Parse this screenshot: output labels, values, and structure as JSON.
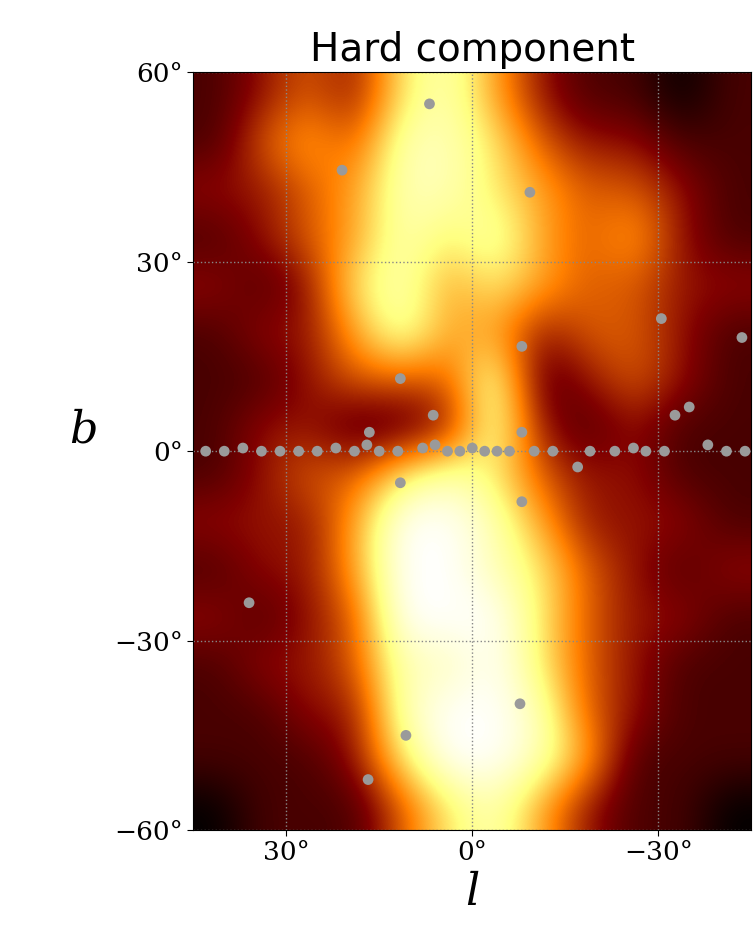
{
  "chart_data": {
    "type": "heatmap",
    "title": "Hard component",
    "x_label": "l",
    "y_label": "b",
    "xlim": [
      45,
      -45
    ],
    "ylim": [
      -60,
      60
    ],
    "xticks": [
      {
        "value": 30,
        "label": "30°"
      },
      {
        "value": 0,
        "label": "0°"
      },
      {
        "value": -30,
        "label": "−30°"
      }
    ],
    "yticks": [
      {
        "value": -60,
        "label": "−60°"
      },
      {
        "value": -30,
        "label": "−30°"
      },
      {
        "value": 0,
        "label": "0°"
      },
      {
        "value": 30,
        "label": "30°"
      },
      {
        "value": 60,
        "label": "60°"
      }
    ],
    "grid": true,
    "cells": [
      [
        0.3,
        0.4,
        0.5,
        0.4,
        0.7,
        0.8,
        0.6,
        0.4,
        0.3,
        0.3,
        0.2,
        0.3
      ],
      [
        0.3,
        0.5,
        0.6,
        0.5,
        0.8,
        0.8,
        0.7,
        0.5,
        0.4,
        0.4,
        0.3,
        0.3
      ],
      [
        0.4,
        0.4,
        0.5,
        0.6,
        0.8,
        0.8,
        0.7,
        0.6,
        0.5,
        0.5,
        0.4,
        0.3
      ],
      [
        0.3,
        0.4,
        0.5,
        0.6,
        0.8,
        0.7,
        0.8,
        0.6,
        0.5,
        0.6,
        0.4,
        0.3
      ],
      [
        0.4,
        0.3,
        0.4,
        0.7,
        0.8,
        0.6,
        0.7,
        0.6,
        0.5,
        0.5,
        0.4,
        0.4
      ],
      [
        0.3,
        0.4,
        0.4,
        0.6,
        0.8,
        0.6,
        0.6,
        0.4,
        0.5,
        0.5,
        0.4,
        0.3
      ],
      [
        0.3,
        0.3,
        0.4,
        0.5,
        0.5,
        0.5,
        0.8,
        0.3,
        0.4,
        0.5,
        0.4,
        0.3
      ],
      [
        0.3,
        0.4,
        0.4,
        0.3,
        0.3,
        0.4,
        0.8,
        0.4,
        0.3,
        0.4,
        0.3,
        0.3
      ],
      [
        0.3,
        0.4,
        0.5,
        0.5,
        0.7,
        0.8,
        0.7,
        0.5,
        0.4,
        0.4,
        0.3,
        0.3
      ],
      [
        0.4,
        0.4,
        0.4,
        0.6,
        0.9,
        0.9,
        0.8,
        0.6,
        0.4,
        0.4,
        0.4,
        0.3
      ],
      [
        0.3,
        0.4,
        0.4,
        0.6,
        0.9,
        0.9,
        0.8,
        0.7,
        0.5,
        0.4,
        0.3,
        0.4
      ],
      [
        0.4,
        0.3,
        0.4,
        0.5,
        0.9,
        0.9,
        0.9,
        0.7,
        0.5,
        0.4,
        0.4,
        0.3
      ],
      [
        0.3,
        0.4,
        0.4,
        0.5,
        0.8,
        0.8,
        0.9,
        0.7,
        0.5,
        0.4,
        0.3,
        0.3
      ],
      [
        0.3,
        0.3,
        0.4,
        0.4,
        0.8,
        0.9,
        0.9,
        0.8,
        0.5,
        0.4,
        0.3,
        0.3
      ],
      [
        0.3,
        0.3,
        0.3,
        0.4,
        0.7,
        0.9,
        0.9,
        0.8,
        0.6,
        0.3,
        0.3,
        0.3
      ],
      [
        0.2,
        0.3,
        0.3,
        0.3,
        0.5,
        0.7,
        0.8,
        0.6,
        0.4,
        0.3,
        0.3,
        0.2
      ]
    ],
    "sources": {
      "marker": "o",
      "color": "#9a9a9a",
      "l": [
        6.9,
        21,
        -9.3,
        -8,
        11.6,
        -30.5,
        -43.5,
        -35,
        -32.7,
        6.3,
        11.6,
        -8,
        36,
        -7.7,
        10.7,
        16.8,
        -17,
        -8,
        16.6,
        43,
        40,
        37,
        34,
        31,
        28,
        25,
        22,
        19,
        17,
        15,
        12,
        8,
        6,
        4,
        2,
        0,
        -2,
        -4,
        -6,
        -10,
        -13,
        -19,
        -23,
        -26,
        -28,
        -31,
        -38,
        -41,
        -44
      ],
      "b": [
        55,
        44.5,
        41,
        16.6,
        11.5,
        21,
        18,
        7,
        5.7,
        5.7,
        -5,
        -8,
        -24,
        -40,
        -45,
        -52,
        -2.5,
        3,
        3,
        0,
        0,
        0.5,
        0,
        0,
        0,
        0,
        0.5,
        0,
        1,
        0,
        0,
        0.5,
        1,
        0,
        0,
        0.5,
        0,
        0,
        0,
        0,
        0,
        0,
        0,
        0.5,
        0,
        0,
        1,
        0,
        0
      ]
    }
  }
}
